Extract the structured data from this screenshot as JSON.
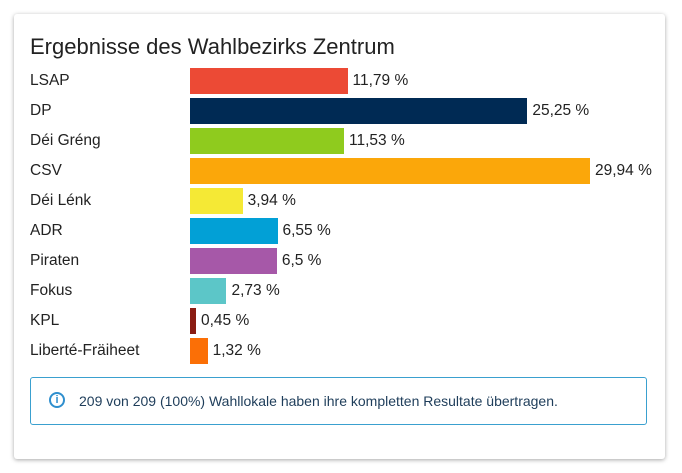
{
  "chart_data": {
    "type": "bar",
    "orientation": "horizontal",
    "title": "Ergebnisse des Wahlbezirks Zentrum",
    "categories": [
      "LSAP",
      "DP",
      "Déi Gréng",
      "CSV",
      "Déi Lénk",
      "ADR",
      "Piraten",
      "Fokus",
      "KPL",
      "Liberté-Fräiheet"
    ],
    "values": [
      11.79,
      25.25,
      11.53,
      29.94,
      3.94,
      6.55,
      6.5,
      2.73,
      0.45,
      1.32
    ],
    "value_labels": [
      "11,79 %",
      "25,25 %",
      "11,53 %",
      "29,94 %",
      "3,94 %",
      "6,55 %",
      "6,5 %",
      "2,73 %",
      "0,45 %",
      "1,32 %"
    ],
    "colors": [
      "#ec4a35",
      "#002a54",
      "#8fcb1e",
      "#fba70a",
      "#f5e935",
      "#02a0d6",
      "#a658a8",
      "#5cc6c8",
      "#8a1c12",
      "#fb6f06"
    ],
    "xlim": [
      0,
      29.94
    ],
    "grid": false,
    "legend": "none"
  },
  "info": {
    "icon": "info-icon",
    "text": "209 von 209 (100%) Wahllokale haben ihre kompletten Resultate übertragen."
  }
}
